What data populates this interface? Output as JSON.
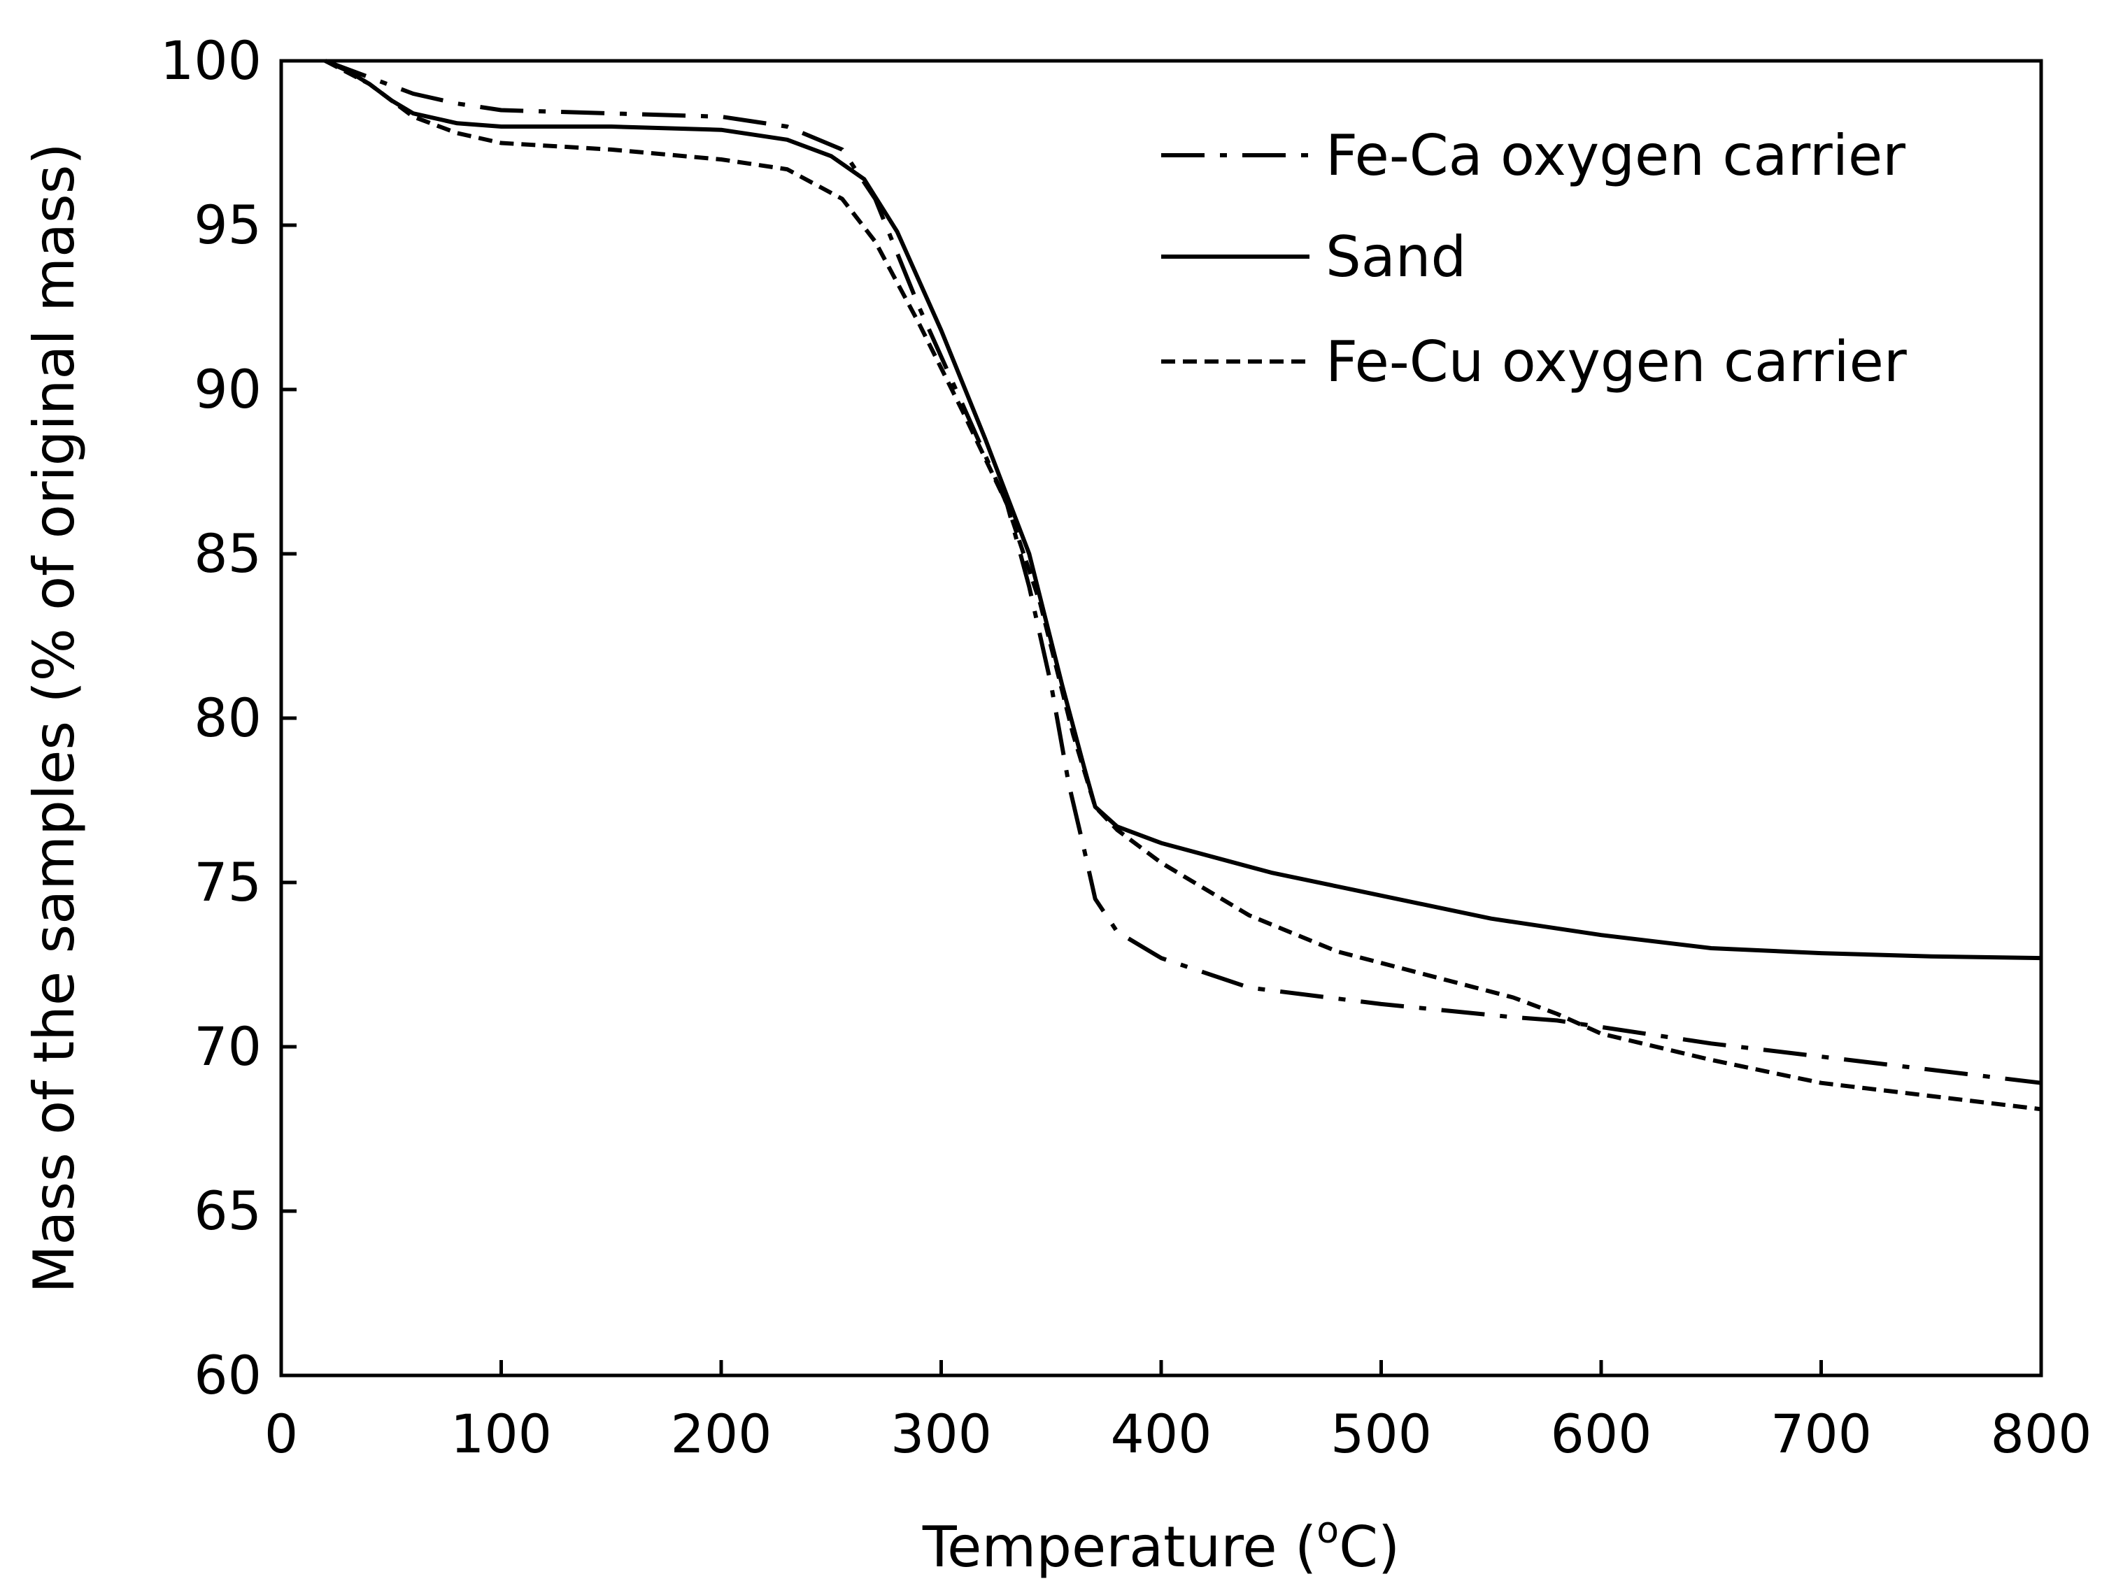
{
  "chart_data": {
    "type": "line",
    "title": "",
    "xlabel_prefix": "Temperature (",
    "xlabel_sup": "o",
    "xlabel_suffix": "C)",
    "ylabel": "Mass of the samples (% of original mass)",
    "xlim": [
      0,
      800
    ],
    "ylim": [
      60,
      100
    ],
    "xticks": [
      0,
      100,
      200,
      300,
      400,
      500,
      600,
      700,
      800
    ],
    "yticks": [
      60,
      65,
      70,
      75,
      80,
      85,
      90,
      95,
      100
    ],
    "grid": false,
    "legend_position": "top-right",
    "series": [
      {
        "name": "Fe-Ca oxygen carrier",
        "style": "dash-dot",
        "color": "#000000",
        "x": [
          20,
          40,
          60,
          80,
          100,
          150,
          200,
          230,
          255,
          270,
          290,
          310,
          330,
          340,
          350,
          358,
          365,
          370,
          380,
          400,
          440,
          500,
          560,
          580,
          600,
          650,
          700,
          750,
          800
        ],
        "y": [
          100,
          99.5,
          99.0,
          98.7,
          98.5,
          98.4,
          98.3,
          98.0,
          97.3,
          95.8,
          92.5,
          89.5,
          86.5,
          84.0,
          81.0,
          78.0,
          76.0,
          74.5,
          73.5,
          72.7,
          71.8,
          71.3,
          70.9,
          70.8,
          70.6,
          70.1,
          69.7,
          69.3,
          68.9
        ]
      },
      {
        "name": "Sand",
        "style": "solid",
        "color": "#000000",
        "x": [
          20,
          30,
          40,
          50,
          60,
          80,
          100,
          150,
          200,
          230,
          250,
          265,
          280,
          300,
          320,
          340,
          355,
          365,
          370,
          380,
          400,
          450,
          500,
          550,
          600,
          650,
          700,
          750,
          800
        ],
        "y": [
          100,
          99.7,
          99.3,
          98.8,
          98.4,
          98.1,
          98.0,
          98.0,
          97.9,
          97.6,
          97.1,
          96.4,
          94.8,
          91.8,
          88.5,
          85.0,
          81.0,
          78.5,
          77.3,
          76.7,
          76.2,
          75.3,
          74.6,
          73.9,
          73.4,
          73.0,
          72.85,
          72.75,
          72.7
        ]
      },
      {
        "name": "Fe-Cu oxygen carrier",
        "style": "dashed",
        "color": "#000000",
        "x": [
          20,
          40,
          60,
          80,
          100,
          150,
          200,
          230,
          255,
          270,
          290,
          310,
          330,
          345,
          360,
          370,
          380,
          400,
          440,
          480,
          520,
          560,
          580,
          600,
          650,
          700,
          750,
          800
        ],
        "y": [
          100,
          99.3,
          98.3,
          97.8,
          97.5,
          97.3,
          97.0,
          96.7,
          95.8,
          94.5,
          92.0,
          89.3,
          86.5,
          83.5,
          79.5,
          77.3,
          76.6,
          75.6,
          74.0,
          72.9,
          72.2,
          71.5,
          71.0,
          70.4,
          69.6,
          68.9,
          68.5,
          68.1
        ]
      }
    ]
  }
}
